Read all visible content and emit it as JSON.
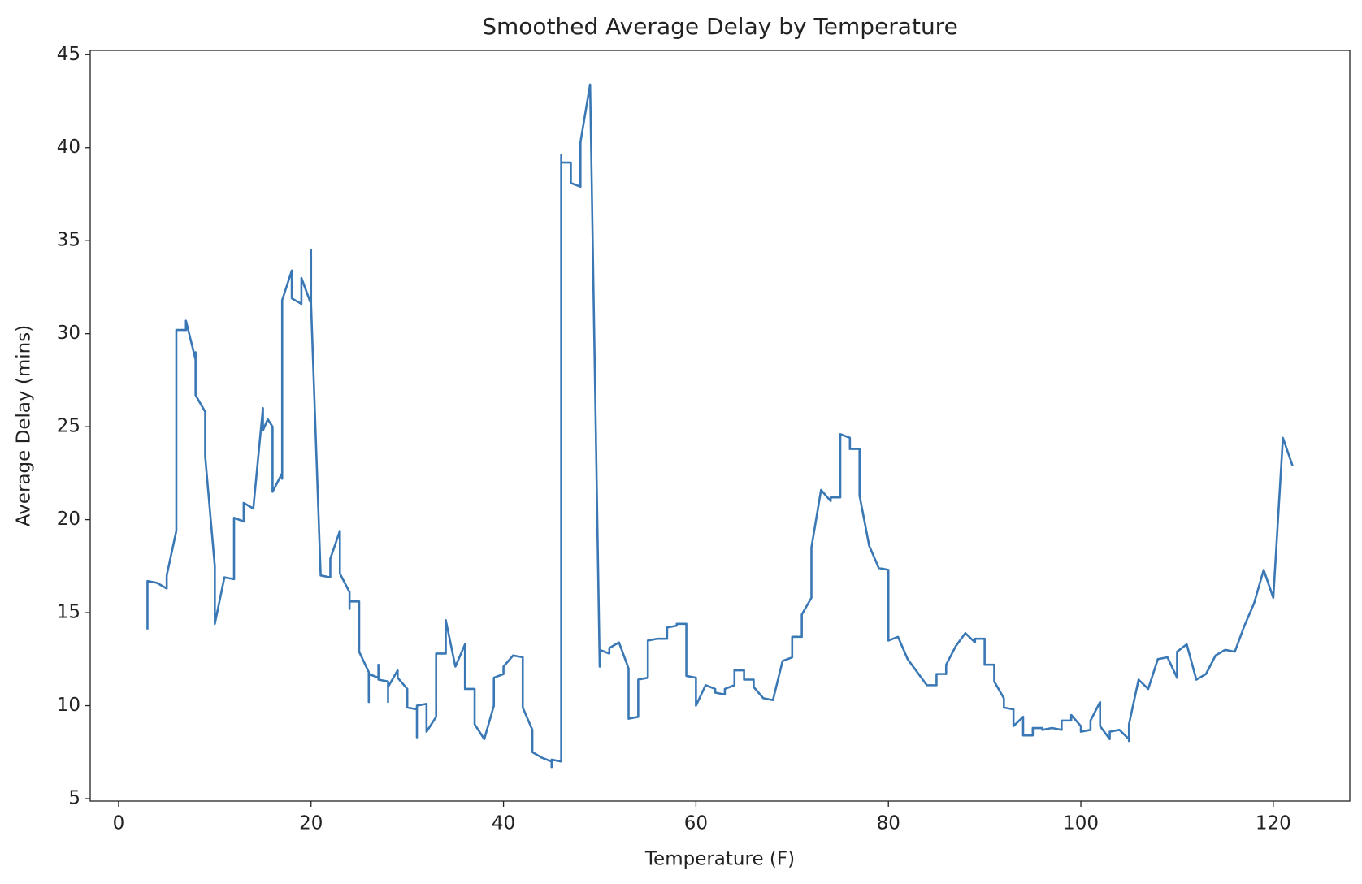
{
  "chart_data": {
    "type": "line",
    "title": "Smoothed Average Delay by Temperature",
    "x_label": "Temperature (F)",
    "y_label": "Average Delay (mins)",
    "x": [
      3,
      3,
      4,
      5,
      5,
      6,
      6,
      7,
      7,
      8,
      8,
      8,
      9,
      9,
      10,
      10,
      11,
      12,
      12,
      13,
      13,
      14,
      15,
      15,
      15.5,
      16,
      16,
      17,
      17,
      17,
      18,
      18,
      19,
      19,
      20,
      20,
      20,
      21,
      22,
      22,
      23,
      23,
      24,
      24,
      24,
      25,
      25,
      26,
      26,
      26,
      27,
      27,
      27,
      28,
      28,
      28,
      29,
      29,
      30,
      30,
      31,
      31,
      31,
      32,
      32,
      33,
      33,
      34,
      34,
      35,
      36,
      36,
      37,
      37,
      38,
      39,
      39,
      40,
      40,
      41,
      42,
      42,
      43,
      43,
      44,
      45,
      45,
      45,
      46,
      46,
      46,
      47,
      47,
      48,
      48,
      49,
      50,
      50,
      51,
      51,
      52,
      53,
      53,
      54,
      54,
      55,
      55,
      56,
      57,
      57,
      58,
      58,
      59,
      59,
      60,
      60,
      61,
      62,
      62,
      63,
      63,
      64,
      64,
      65,
      65,
      66,
      66,
      67,
      68,
      69,
      70,
      70,
      71,
      71,
      72,
      72,
      73,
      74,
      74,
      75,
      75,
      76,
      76,
      77,
      77,
      78,
      79,
      80,
      80,
      81,
      82,
      83,
      84,
      85,
      85,
      86,
      86,
      87,
      88,
      89,
      89,
      90,
      90,
      91,
      91,
      92,
      92,
      93,
      93,
      94,
      94,
      95,
      95,
      96,
      96,
      97,
      98,
      98,
      99,
      99,
      100,
      100,
      101,
      101,
      102,
      102,
      103,
      103,
      104,
      105,
      105,
      105,
      106,
      107,
      108,
      109,
      110,
      110,
      111,
      112,
      113,
      114,
      115,
      116,
      117,
      118,
      119,
      120,
      121,
      122
    ],
    "series": [
      {
        "name": "Average Delay",
        "color": "#3a78b5",
        "values": [
          14.1,
          16.7,
          16.6,
          16.3,
          17.0,
          19.4,
          30.2,
          30.2,
          30.7,
          28.6,
          29.0,
          26.7,
          25.8,
          23.4,
          17.5,
          14.4,
          16.9,
          16.8,
          20.1,
          19.9,
          20.9,
          20.6,
          26.0,
          24.8,
          25.4,
          25.0,
          21.5,
          22.5,
          22.2,
          31.8,
          33.4,
          31.9,
          31.6,
          33.0,
          31.6,
          34.5,
          31.6,
          17.0,
          16.9,
          17.9,
          19.4,
          17.1,
          16.1,
          15.2,
          15.6,
          15.6,
          12.9,
          11.8,
          10.2,
          11.7,
          11.5,
          12.2,
          11.4,
          11.3,
          10.2,
          11.0,
          11.9,
          11.5,
          10.9,
          9.9,
          9.8,
          8.3,
          10.0,
          10.1,
          8.6,
          9.4,
          12.8,
          12.8,
          14.6,
          12.1,
          13.3,
          10.9,
          10.9,
          9.0,
          8.2,
          10.0,
          11.5,
          11.7,
          12.1,
          12.7,
          12.6,
          9.9,
          8.7,
          7.5,
          7.2,
          7.0,
          6.7,
          7.1,
          7.0,
          39.6,
          39.2,
          39.2,
          38.1,
          37.9,
          40.3,
          43.4,
          12.1,
          13.0,
          12.8,
          13.1,
          13.4,
          12.0,
          9.3,
          9.4,
          11.4,
          11.5,
          13.5,
          13.6,
          13.6,
          14.2,
          14.3,
          14.4,
          14.4,
          11.6,
          11.5,
          10.0,
          11.1,
          10.9,
          10.7,
          10.6,
          10.9,
          11.1,
          11.9,
          11.9,
          11.4,
          11.4,
          11.0,
          10.4,
          10.3,
          12.4,
          12.6,
          13.7,
          13.7,
          14.9,
          15.8,
          18.5,
          21.6,
          21.0,
          21.2,
          21.2,
          24.6,
          24.4,
          23.8,
          23.8,
          21.3,
          18.6,
          17.4,
          17.3,
          13.5,
          13.7,
          12.5,
          11.8,
          11.1,
          11.1,
          11.7,
          11.7,
          12.2,
          13.2,
          13.9,
          13.4,
          13.6,
          13.6,
          12.2,
          12.2,
          11.3,
          10.4,
          9.9,
          9.8,
          8.9,
          9.4,
          8.4,
          8.4,
          8.8,
          8.8,
          8.7,
          8.8,
          8.7,
          9.2,
          9.2,
          9.5,
          8.9,
          8.6,
          8.7,
          9.2,
          10.2,
          8.9,
          8.2,
          8.6,
          8.7,
          8.2,
          8.1,
          9.0,
          11.4,
          10.9,
          12.5,
          12.6,
          11.5,
          12.9,
          13.3,
          11.4,
          11.7,
          12.7,
          13.0,
          12.9,
          14.3,
          15.5,
          17.3,
          15.8,
          24.4,
          22.9
        ]
      }
    ],
    "xlim": [
      -2.95,
      127.95
    ],
    "ylim": [
      4.87,
      45.23
    ],
    "xticks": [
      0,
      20,
      40,
      60,
      80,
      100,
      120
    ],
    "yticks": [
      5,
      10,
      15,
      20,
      25,
      30,
      35,
      40,
      45
    ]
  }
}
